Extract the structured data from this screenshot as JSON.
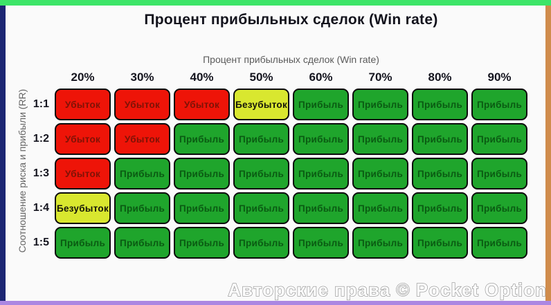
{
  "page": {
    "title": "Процент прибыльных сделок (Win rate)",
    "watermark": "Авторские права © Pocket Option"
  },
  "frame": {
    "top_color": "#3de568",
    "left_color": "#1c2673",
    "right_color": "#d08c4c",
    "bottom_color": "#ab87e2"
  },
  "chart_data": {
    "type": "heatmap",
    "title": "Процент прибыльных сделок (Win rate)",
    "xlabel": "Процент прибыльных сделок (Win rate)",
    "ylabel": "Соотношение риска и прибыли (RR)",
    "x_categories": [
      "20%",
      "30%",
      "40%",
      "50%",
      "60%",
      "70%",
      "80%",
      "90%"
    ],
    "y_categories": [
      "1:1",
      "1:2",
      "1:3",
      "1:4",
      "1:5"
    ],
    "values": [
      [
        "Убыток",
        "Убыток",
        "Убыток",
        "Безубыток",
        "Прибыль",
        "Прибыль",
        "Прибыль",
        "Прибыль"
      ],
      [
        "Убыток",
        "Убыток",
        "Прибыль",
        "Прибыль",
        "Прибыль",
        "Прибыль",
        "Прибыль",
        "Прибыль"
      ],
      [
        "Убыток",
        "Прибыль",
        "Прибыль",
        "Прибыль",
        "Прибыль",
        "Прибыль",
        "Прибыль",
        "Прибыль"
      ],
      [
        "Безубыток",
        "Прибыль",
        "Прибыль",
        "Прибыль",
        "Прибыль",
        "Прибыль",
        "Прибыль",
        "Прибыль"
      ],
      [
        "Прибыль",
        "Прибыль",
        "Прибыль",
        "Прибыль",
        "Прибыль",
        "Прибыль",
        "Прибыль",
        "Прибыль"
      ]
    ],
    "label_types": {
      "Убыток": "loss",
      "Безубыток": "breakeven",
      "Прибыль": "profit"
    },
    "colors": {
      "loss": {
        "bg": "#ee1408",
        "text": "#7e1206"
      },
      "breakeven": {
        "bg": "#d9e72f",
        "text": "#15150a"
      },
      "profit": {
        "bg": "#1fa52c",
        "text": "#0a5a12"
      }
    },
    "legend_position": "none",
    "grid": false
  }
}
